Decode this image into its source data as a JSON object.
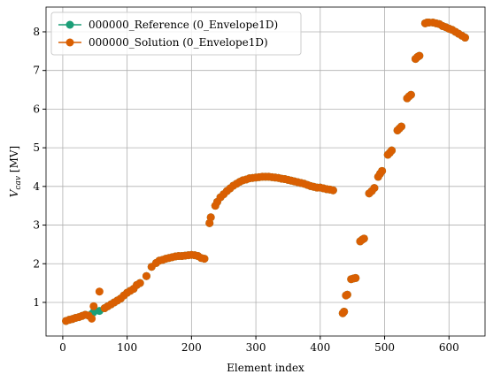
{
  "chart_data": {
    "type": "scatter",
    "xlabel": "Element index",
    "ylabel": {
      "symbol": "V",
      "subscript": "cav",
      "unit": "[MV]"
    },
    "xlim": [
      -26,
      656
    ],
    "ylim": [
      0.13,
      8.64
    ],
    "xticks": [
      0,
      100,
      200,
      300,
      400,
      500,
      600
    ],
    "yticks": [
      1,
      2,
      3,
      4,
      5,
      6,
      7,
      8
    ],
    "grid": true,
    "legend": "upper left",
    "x": [
      5,
      10,
      15,
      20,
      25,
      30,
      35,
      40,
      45,
      48,
      57,
      65,
      70,
      75,
      80,
      85,
      90,
      95,
      100,
      105,
      110,
      115,
      120,
      130,
      138,
      145,
      150,
      155,
      160,
      165,
      170,
      175,
      180,
      185,
      190,
      195,
      200,
      205,
      210,
      215,
      220,
      228,
      230,
      237,
      240,
      245,
      250,
      255,
      260,
      265,
      270,
      275,
      280,
      285,
      290,
      295,
      300,
      305,
      310,
      315,
      320,
      325,
      330,
      335,
      340,
      345,
      350,
      355,
      360,
      365,
      370,
      375,
      380,
      385,
      390,
      395,
      400,
      405,
      410,
      415,
      420,
      435,
      437,
      440,
      442,
      448,
      452,
      455,
      462,
      465,
      468,
      476,
      480,
      484,
      490,
      493,
      496,
      505,
      508,
      511,
      520,
      523,
      526,
      535,
      538,
      541,
      548,
      551,
      554,
      563,
      566,
      569,
      575,
      580,
      585,
      590,
      595,
      600,
      605,
      610,
      615,
      620,
      625
    ],
    "series": [
      {
        "name": "000000_Reference (0_Envelope1D)",
        "color": "#1b9e77",
        "values": [
          0.52,
          0.55,
          0.57,
          0.6,
          0.62,
          0.65,
          0.68,
          0.66,
          0.7,
          0.75,
          0.78,
          0.85,
          0.9,
          0.95,
          1.0,
          1.05,
          1.1,
          1.18,
          1.25,
          1.3,
          1.35,
          1.45,
          1.5,
          1.68,
          1.92,
          2.02,
          2.08,
          2.1,
          2.13,
          2.15,
          2.17,
          2.19,
          2.2,
          2.2,
          2.21,
          2.22,
          2.23,
          2.22,
          2.2,
          2.15,
          2.13,
          3.05,
          3.2,
          3.5,
          3.6,
          3.72,
          3.8,
          3.88,
          3.95,
          4.02,
          4.07,
          4.12,
          4.16,
          4.18,
          4.21,
          4.22,
          4.23,
          4.24,
          4.25,
          4.25,
          4.25,
          4.24,
          4.23,
          4.22,
          4.2,
          4.19,
          4.17,
          4.15,
          4.13,
          4.11,
          4.09,
          4.07,
          4.04,
          4.01,
          3.99,
          3.97,
          3.97,
          3.95,
          3.93,
          3.92,
          3.9,
          0.72,
          0.76,
          1.18,
          1.2,
          1.6,
          1.62,
          1.63,
          2.58,
          2.62,
          2.65,
          3.82,
          3.88,
          3.96,
          4.25,
          4.33,
          4.4,
          4.82,
          4.87,
          4.93,
          5.45,
          5.5,
          5.55,
          6.28,
          6.33,
          6.37,
          7.3,
          7.35,
          7.38,
          8.22,
          8.24,
          8.24,
          8.24,
          8.22,
          8.2,
          8.15,
          8.12,
          8.08,
          8.05,
          8.0,
          7.95,
          7.9,
          7.85
        ]
      },
      {
        "name": "000000_Solution (0_Envelope1D)",
        "color": "#d95f02",
        "values": [
          0.52,
          0.55,
          0.57,
          0.6,
          0.62,
          0.65,
          0.68,
          0.66,
          0.58,
          0.9,
          1.28,
          0.85,
          0.9,
          0.95,
          1.0,
          1.05,
          1.1,
          1.18,
          1.25,
          1.3,
          1.35,
          1.45,
          1.5,
          1.68,
          1.92,
          2.02,
          2.08,
          2.1,
          2.13,
          2.15,
          2.17,
          2.19,
          2.2,
          2.2,
          2.21,
          2.22,
          2.23,
          2.22,
          2.2,
          2.15,
          2.13,
          3.05,
          3.2,
          3.5,
          3.6,
          3.72,
          3.8,
          3.88,
          3.95,
          4.02,
          4.07,
          4.12,
          4.16,
          4.18,
          4.21,
          4.22,
          4.23,
          4.24,
          4.25,
          4.25,
          4.25,
          4.24,
          4.23,
          4.22,
          4.2,
          4.19,
          4.17,
          4.15,
          4.13,
          4.11,
          4.09,
          4.07,
          4.04,
          4.01,
          3.99,
          3.97,
          3.97,
          3.95,
          3.93,
          3.92,
          3.9,
          0.72,
          0.76,
          1.18,
          1.2,
          1.6,
          1.62,
          1.63,
          2.58,
          2.62,
          2.65,
          3.82,
          3.88,
          3.96,
          4.25,
          4.33,
          4.4,
          4.82,
          4.87,
          4.93,
          5.45,
          5.5,
          5.55,
          6.28,
          6.33,
          6.37,
          7.3,
          7.35,
          7.38,
          8.22,
          8.24,
          8.24,
          8.24,
          8.22,
          8.2,
          8.15,
          8.12,
          8.08,
          8.05,
          8.0,
          7.95,
          7.9,
          7.85
        ]
      }
    ]
  }
}
